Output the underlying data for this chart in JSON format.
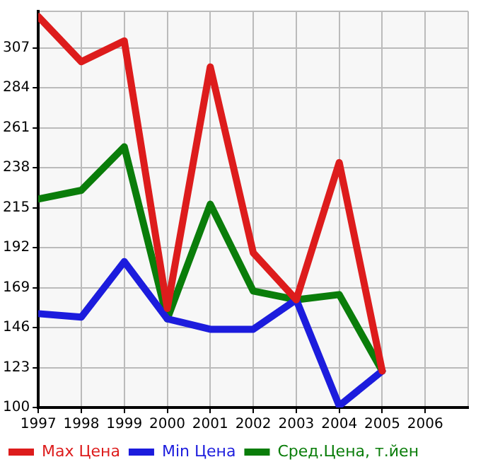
{
  "chart_data": {
    "type": "line",
    "x": [
      1997,
      1998,
      1999,
      2000,
      2001,
      2002,
      2003,
      2004,
      2005
    ],
    "series": [
      {
        "name": "Max Цена",
        "color": "#dd1c1c",
        "values": [
          325,
          299,
          311,
          157,
          296,
          189,
          162,
          241,
          121
        ]
      },
      {
        "name": "Min Цена",
        "color": "#1c1cdd",
        "values": [
          154,
          152,
          184,
          151,
          145,
          145,
          162,
          101,
          121
        ]
      },
      {
        "name": "Сред.Цена, т.йен",
        "color": "#0a7d0a",
        "values": [
          220,
          225,
          250,
          151,
          217,
          167,
          162,
          165,
          121
        ]
      }
    ],
    "xlim": [
      1997,
      2007
    ],
    "xticks": [
      1997,
      1998,
      1999,
      2000,
      2001,
      2002,
      2003,
      2004,
      2005,
      2006
    ],
    "ylim": [
      100,
      328
    ],
    "yticks": [
      100,
      123,
      146,
      169,
      192,
      215,
      238,
      261,
      284,
      307
    ],
    "grid": true,
    "legend": "bottom",
    "marker": "none",
    "line_style": "solid"
  }
}
